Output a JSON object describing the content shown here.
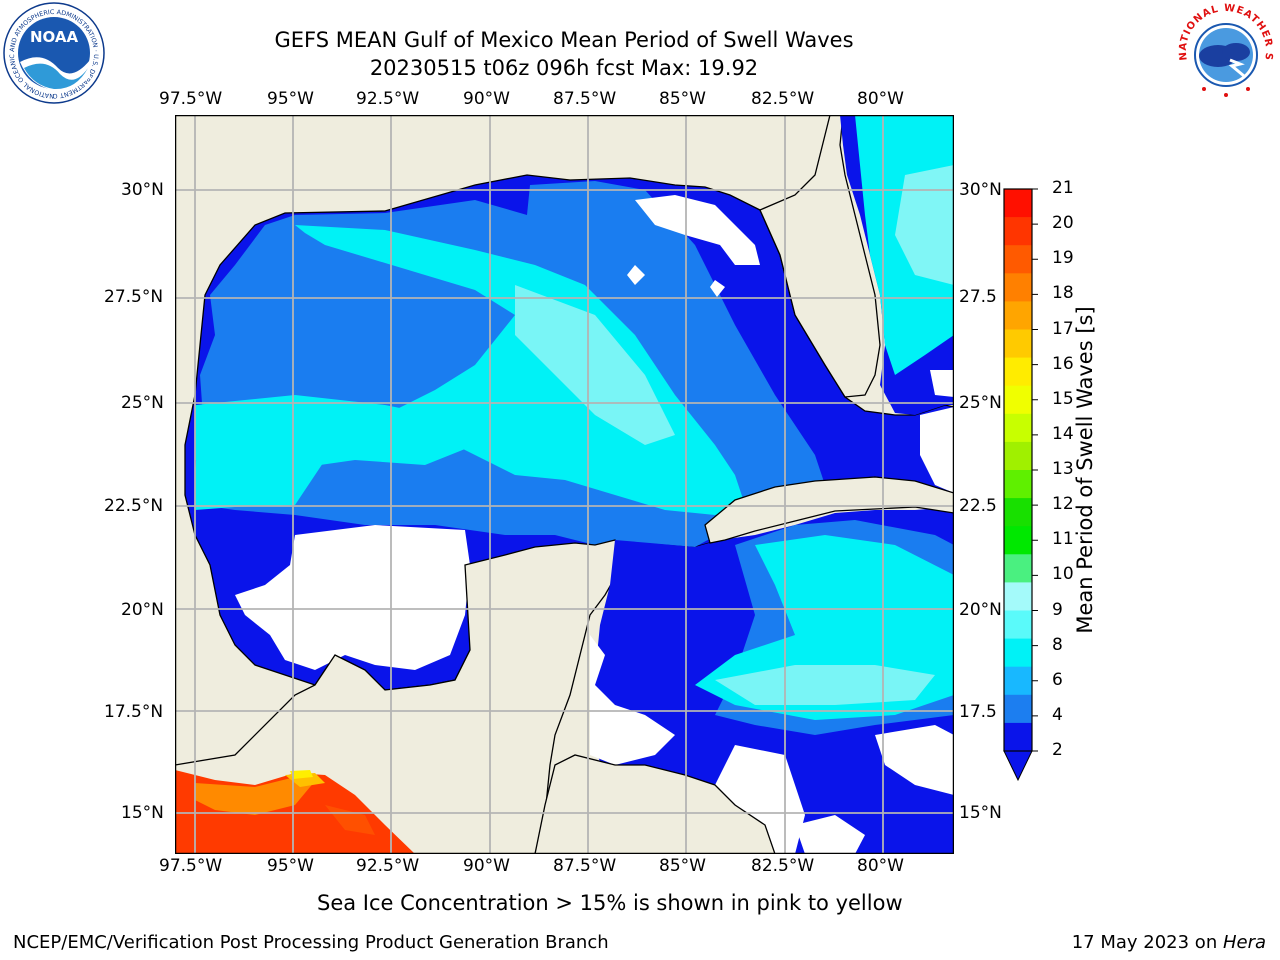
{
  "title": {
    "line1": "GEFS MEAN Gulf of Mexico Mean Period of Swell Waves",
    "line2": "20230515 t06z 096h fcst   Max: 19.92"
  },
  "map": {
    "lon_labels": [
      "97.5°W",
      "95°W",
      "92.5°W",
      "90°W",
      "87.5°W",
      "85°W",
      "82.5°W",
      "80°W"
    ],
    "lat_labels_left": [
      "30°N",
      "27.5°N",
      "25°N",
      "22.5°N",
      "20°N",
      "17.5°N",
      "15°N"
    ],
    "lat_labels_right": [
      "30°N",
      "27.5",
      "25°N",
      "22.5",
      "20°N",
      "17.5",
      "15°N"
    ],
    "colors": {
      "land": "#efedde",
      "water_blue": "#0a14ea",
      "water_mid": "#1a7df0",
      "water_cyan": "#00f2f6",
      "water_light": "#8ef6f6",
      "warm_red": "#ff3a00",
      "warm_orange": "#ff8a00",
      "grid": "#b4b4b4"
    }
  },
  "colorbar": {
    "title": "Mean Period of Swell Waves [s]",
    "tick_labels": [
      "21",
      "20",
      "19",
      "18",
      "17",
      "16",
      "15",
      "14",
      "13",
      "12",
      "11",
      "10",
      "9",
      "8",
      "6",
      "4",
      "2"
    ],
    "colors": [
      "#ff1000",
      "#ff3500",
      "#ff5a00",
      "#ff8000",
      "#ffa500",
      "#ffca00",
      "#ffec00",
      "#f0ff00",
      "#c8ff00",
      "#a0f000",
      "#5ff000",
      "#18e000",
      "#00e800",
      "#4af080",
      "#a4fafa",
      "#5afafa",
      "#00f2f6",
      "#18b8ff",
      "#1c7ef0",
      "#0a14ea"
    ]
  },
  "caption": "Sea Ice Concentration > 15% is shown in pink to yellow",
  "footer": {
    "left": "NCEP/EMC/Verification Post Processing Product Generation Branch",
    "right_prefix": "17 May 2023 on ",
    "right_host": "Hera"
  },
  "logos": {
    "noaa_text": "NOAA",
    "noaa_ring": "NATIONAL OCEANIC AND ATMOSPHERIC ADMINISTRATION · U.S. DEPARTMENT OF COMMERCE",
    "nws_ring": "NATIONAL WEATHER SERVICE"
  }
}
